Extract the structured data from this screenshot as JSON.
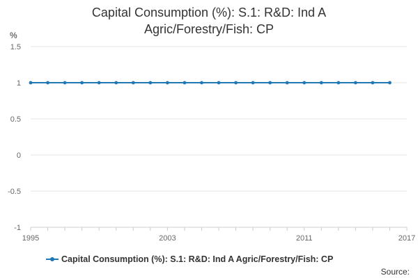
{
  "chart_data": {
    "type": "line",
    "title_lines": [
      "Capital Consumption (%): S.1: R&D: Ind A",
      "Agric/Forestry/Fish: CP"
    ],
    "ylabel": "%",
    "xlabel": "",
    "x_ticks": [
      "1995",
      "2003",
      "2011",
      "2017"
    ],
    "y_ticks": [
      "1.5",
      "1",
      "0.5",
      "0",
      "-0.5",
      "-1"
    ],
    "xlim": [
      1995,
      2017
    ],
    "ylim": [
      -1,
      1.5
    ],
    "grid": true,
    "legend_position": "bottom",
    "series": [
      {
        "name": "Capital Consumption (%): S.1: R&D: Ind A Agric/Forestry/Fish: CP",
        "color": "#1f77b4",
        "x": [
          1995,
          1996,
          1997,
          1998,
          1999,
          2000,
          2001,
          2002,
          2003,
          2004,
          2005,
          2006,
          2007,
          2008,
          2009,
          2010,
          2011,
          2012,
          2013,
          2014,
          2015,
          2016
        ],
        "values": [
          1,
          1,
          1,
          1,
          1,
          1,
          1,
          1,
          1,
          1,
          1,
          1,
          1,
          1,
          1,
          1,
          1,
          1,
          1,
          1,
          1,
          1
        ]
      }
    ]
  },
  "source_label": "Source:"
}
